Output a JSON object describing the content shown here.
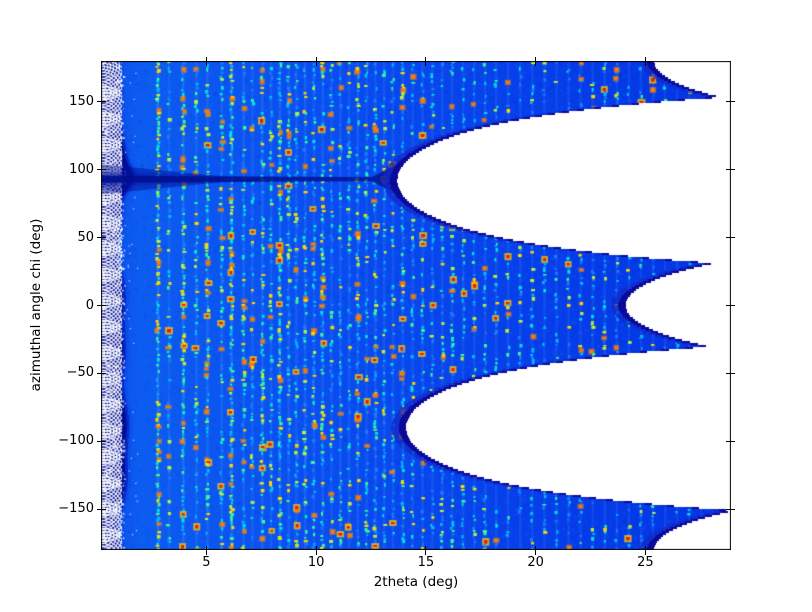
{
  "figure": {
    "xlabel": "2theta (deg)",
    "ylabel": "azimuthal angle chi (deg)"
  },
  "chart_data": {
    "type": "heatmap",
    "title": "",
    "xlabel": "2theta (deg)",
    "ylabel": "azimuthal angle chi (deg)",
    "colormap": "jet",
    "xlim": [
      0.2,
      28.9
    ],
    "ylim": [
      -180,
      180
    ],
    "xticks": [
      5,
      10,
      15,
      20,
      25
    ],
    "xtick_labels": [
      "5",
      "10",
      "15",
      "20",
      "25"
    ],
    "yticks": [
      150,
      100,
      50,
      0,
      -50,
      -100,
      -150
    ],
    "ytick_labels": [
      "150",
      "100",
      "50",
      "0",
      "−50",
      "−100",
      "−150"
    ],
    "grid": false,
    "legend": "none",
    "colors": {
      "background_blue": "#0a4cee",
      "low_navy": "#000d94",
      "gap_shadow": "#0a0a99",
      "gap_white": "#ffffff",
      "speckle_palette": [
        "#1e82ff",
        "#00bdff",
        "#00e6e0",
        "#3cf59a",
        "#b8f03c",
        "#ffd400",
        "#ff7d00",
        "#f01800"
      ]
    },
    "detector_edges": [
      {
        "chi": 0,
        "max_2theta": 24.1
      },
      {
        "chi": 92,
        "max_2theta": 13.7
      },
      {
        "chi": 180,
        "max_2theta": 25.4
      },
      {
        "chi": -90,
        "max_2theta": 14.1
      }
    ],
    "beamstop": {
      "max_2theta": 1.4,
      "arm_chi": 93,
      "arm_end_2theta": 13.7
    },
    "rings_format": "[two_theta_deg, relative_intensity]",
    "rings": [
      [
        2.8,
        1.0
      ],
      [
        3.3,
        0.3
      ],
      [
        3.95,
        0.8
      ],
      [
        4.55,
        0.5
      ],
      [
        5.05,
        0.6
      ],
      [
        5.7,
        0.45
      ],
      [
        6.15,
        0.9
      ],
      [
        6.7,
        0.55
      ],
      [
        7.1,
        0.35
      ],
      [
        7.55,
        0.6
      ],
      [
        7.95,
        0.4
      ],
      [
        8.35,
        0.75
      ],
      [
        8.75,
        0.45
      ],
      [
        9.1,
        0.4
      ],
      [
        9.5,
        0.5
      ],
      [
        9.9,
        0.4
      ],
      [
        10.3,
        0.55
      ],
      [
        10.7,
        0.35
      ],
      [
        11.1,
        0.45
      ],
      [
        11.5,
        0.35
      ],
      [
        11.9,
        0.45
      ],
      [
        12.3,
        0.35
      ],
      [
        12.7,
        0.4
      ],
      [
        13.1,
        0.4
      ],
      [
        13.5,
        0.3
      ],
      [
        13.95,
        0.4
      ],
      [
        14.4,
        0.3
      ],
      [
        14.85,
        0.35
      ],
      [
        15.3,
        0.3
      ],
      [
        15.75,
        0.35
      ],
      [
        16.2,
        0.3
      ],
      [
        16.7,
        0.35
      ],
      [
        17.2,
        0.3
      ],
      [
        17.7,
        0.35
      ],
      [
        18.2,
        0.3
      ],
      [
        18.75,
        0.3
      ],
      [
        19.3,
        0.3
      ],
      [
        19.85,
        0.25
      ],
      [
        20.4,
        0.3
      ],
      [
        20.95,
        0.25
      ],
      [
        21.5,
        0.3
      ],
      [
        22.05,
        0.25
      ],
      [
        22.6,
        0.25
      ],
      [
        23.15,
        0.3
      ],
      [
        23.7,
        0.25
      ],
      [
        24.25,
        0.25
      ],
      [
        24.8,
        0.25
      ],
      [
        25.35,
        0.3
      ],
      [
        25.9,
        0.25
      ],
      [
        26.45,
        0.25
      ],
      [
        27.0,
        0.2
      ],
      [
        27.55,
        0.2
      ],
      [
        28.1,
        0.2
      ],
      [
        28.6,
        0.2
      ]
    ]
  }
}
